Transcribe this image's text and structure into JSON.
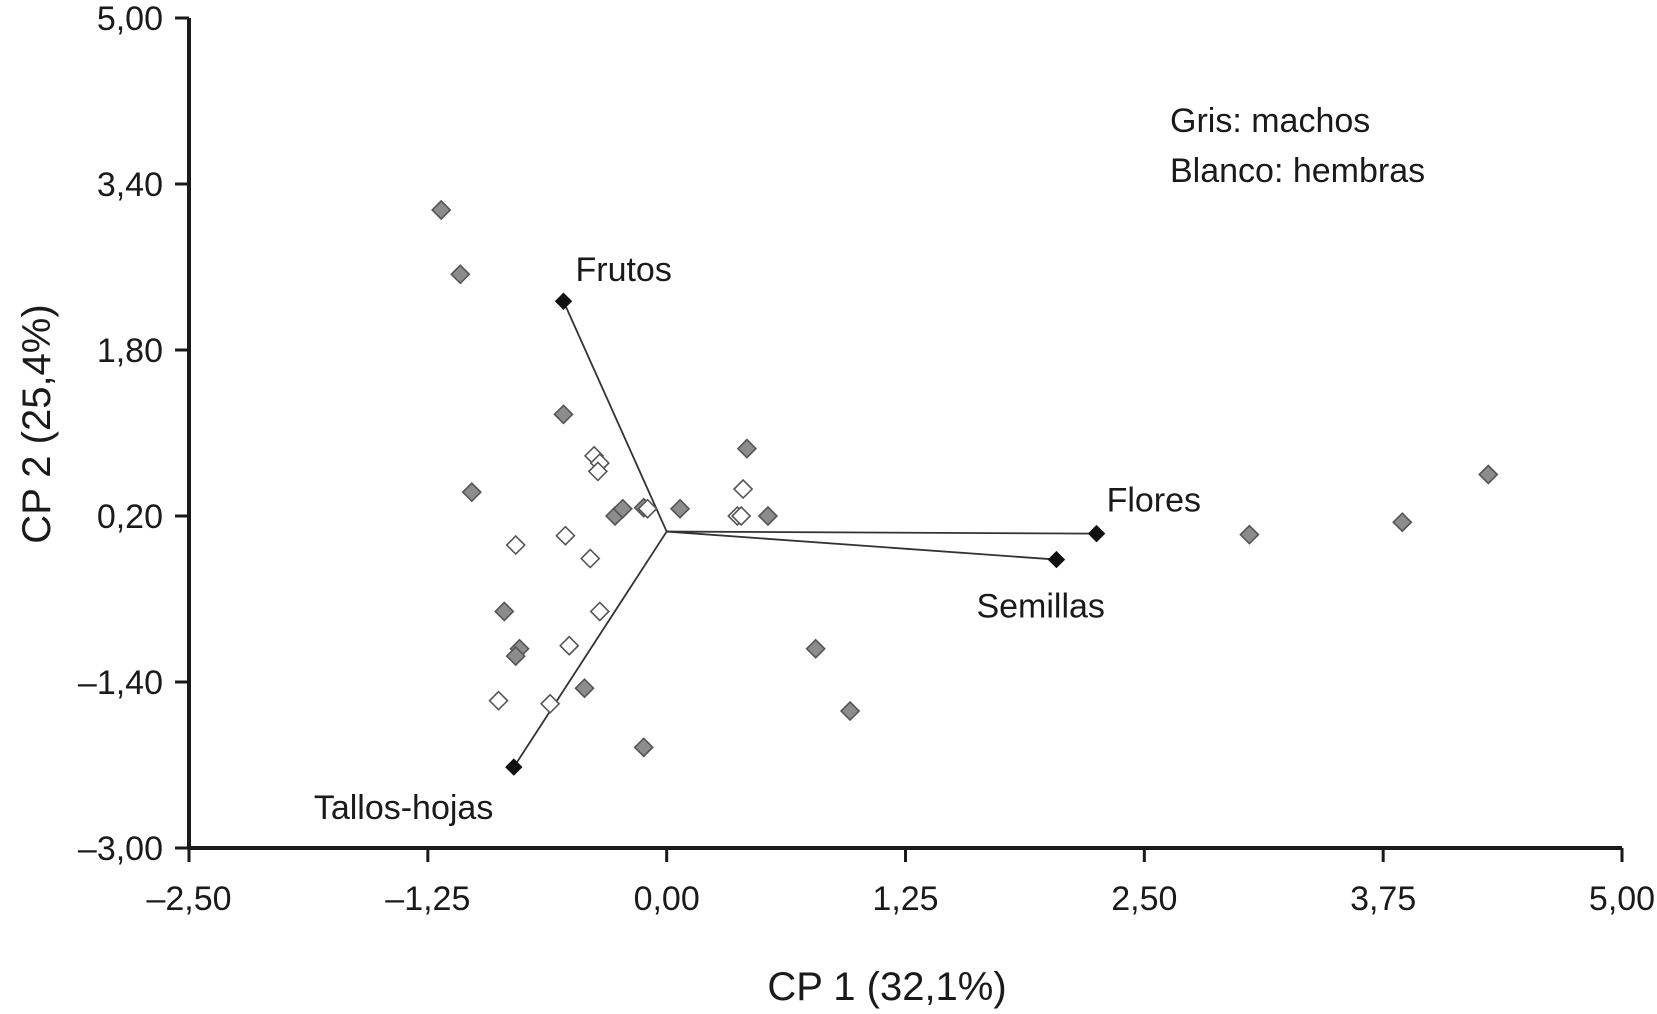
{
  "chart_data": {
    "type": "scatter",
    "xlabel": "CP 1 (32,1%)",
    "ylabel": "CP 2 (25,4%)",
    "xlim": [
      -2.5,
      5.0
    ],
    "ylim": [
      -3.0,
      5.0
    ],
    "x_ticks": [
      "–2,50",
      "–1,25",
      "0,00",
      "1,25",
      "2,50",
      "3,75",
      "5,00"
    ],
    "x_tick_values": [
      -2.5,
      -1.25,
      0.0,
      1.25,
      2.5,
      3.75,
      5.0
    ],
    "y_ticks": [
      "5,00",
      "3,40",
      "1,80",
      "0,20",
      "–1,40",
      "–3,00"
    ],
    "y_tick_values": [
      5.0,
      3.4,
      1.8,
      0.2,
      -1.4,
      -3.0
    ],
    "grid": false,
    "legend": {
      "placement": "top-right",
      "lines": [
        "Gris: machos",
        "Blanco: hembras"
      ]
    },
    "colors": {
      "machos": "#8c8c8c",
      "hembras": "#ffffff",
      "vector_tip": "#111111"
    },
    "series": [
      {
        "name": "machos",
        "points": [
          [
            -1.18,
            3.15
          ],
          [
            -1.08,
            2.53
          ],
          [
            -0.54,
            1.18
          ],
          [
            0.42,
            0.85
          ],
          [
            -1.02,
            0.43
          ],
          [
            -0.27,
            0.2
          ],
          [
            -0.23,
            0.27
          ],
          [
            -0.12,
            0.28
          ],
          [
            0.07,
            0.27
          ],
          [
            0.53,
            0.2
          ],
          [
            -0.85,
            -0.72
          ],
          [
            -0.77,
            -1.08
          ],
          [
            -0.79,
            -1.15
          ],
          [
            -0.43,
            -1.46
          ],
          [
            -0.12,
            -2.03
          ],
          [
            0.78,
            -1.08
          ],
          [
            0.96,
            -1.68
          ],
          [
            3.05,
            0.02
          ],
          [
            3.85,
            0.14
          ],
          [
            4.3,
            0.6
          ]
        ]
      },
      {
        "name": "hembras",
        "points": [
          [
            -0.38,
            0.78
          ],
          [
            -0.35,
            0.71
          ],
          [
            -0.36,
            0.63
          ],
          [
            0.4,
            0.46
          ],
          [
            -0.53,
            0.01
          ],
          [
            -0.79,
            -0.08
          ],
          [
            -0.4,
            -0.21
          ],
          [
            -0.35,
            -0.72
          ],
          [
            -0.51,
            -1.05
          ],
          [
            -0.1,
            0.27
          ],
          [
            0.37,
            0.2
          ],
          [
            0.39,
            0.2
          ],
          [
            -0.88,
            -1.58
          ],
          [
            -0.61,
            -1.61
          ]
        ]
      }
    ],
    "vectors": {
      "origin": [
        0.0,
        0.05
      ],
      "items": [
        {
          "label": "Frutos",
          "end": [
            -0.54,
            2.27
          ]
        },
        {
          "label": "Flores",
          "end": [
            2.25,
            0.03
          ]
        },
        {
          "label": "Semillas",
          "end": [
            2.04,
            -0.22
          ]
        },
        {
          "label": "Tallos-hojas",
          "end": [
            -0.8,
            -2.22
          ]
        }
      ]
    }
  }
}
